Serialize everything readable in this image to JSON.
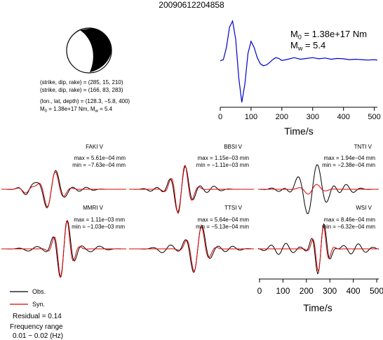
{
  "title": "20090612204858",
  "mechanism": {
    "strike_dip_rake_1": "(strike, dip, rake) = (285, 15, 210)",
    "strike_dip_rake_2": "(strike, dip, rake) = (166, 83, 283)",
    "location": "(lon., lat, depth) = (128.3, −5.8, 400)",
    "moment_line_prefix": "M",
    "moment_line_sub0": "0",
    "moment_line_mid": " = 1.38e+17 Nm, M",
    "moment_line_subw": "w",
    "moment_line_tail": " = 5.4"
  },
  "stf": {
    "m0_prefix": "M",
    "m0_sub": "0",
    "m0_value": " = 1.38e+17 Nm",
    "mw_prefix": "M",
    "mw_sub": "w",
    "mw_value": " = 5.4",
    "xlabel": "Time/s",
    "xticks": [
      "0",
      "100",
      "200",
      "300",
      "400",
      "500"
    ],
    "color": "#0000cc"
  },
  "stations": [
    {
      "name": "FAKI V",
      "max": "max = 5.61e−04 mm",
      "min": "min = −7.63e−04 mm"
    },
    {
      "name": "BBSI V",
      "max": "max = 1.15e−03 mm",
      "min": "min = −1.11e−03 mm"
    },
    {
      "name": "TNTI V",
      "max": "max = 1.94e−04 mm",
      "min": "min = −2.38e−04 mm"
    },
    {
      "name": "MMRI V",
      "max": "max = 1.11e−03 mm",
      "min": "min = −1.03e−03 mm"
    },
    {
      "name": "TTSI V",
      "max": "max = 5.64e−04 mm",
      "min": "min = −5.13e−04 mm"
    },
    {
      "name": "WSI V",
      "max": "max = 8.46e−04 mm",
      "min": "min = −6.32e−04 mm"
    }
  ],
  "waveform_axis": {
    "xlabel": "Time/s",
    "xticks": [
      "0",
      "100",
      "200",
      "300",
      "400",
      "500"
    ]
  },
  "legend": {
    "obs": "Obs.",
    "syn": "Syn.",
    "obs_color": "#000000",
    "syn_color": "#dd0000"
  },
  "residual": "Residual = 0.14",
  "freq_label": "Frequency range",
  "freq_value": "0.01 − 0.02 (Hz)",
  "chart_data": {
    "type": "line",
    "stf": {
      "x_range": [
        0,
        510
      ],
      "x": [
        0,
        10,
        20,
        30,
        40,
        50,
        60,
        70,
        80,
        90,
        100,
        110,
        120,
        130,
        140,
        150,
        160,
        170,
        180,
        190,
        200,
        220,
        240,
        260,
        280,
        300,
        320,
        340,
        360,
        380,
        400,
        420,
        440,
        460,
        480,
        500,
        510
      ],
      "y": [
        0.02,
        0.05,
        0.35,
        0.85,
        1.0,
        0.55,
        -0.4,
        -1.0,
        -0.55,
        0.2,
        0.5,
        0.35,
        0.1,
        -0.05,
        -0.1,
        -0.08,
        -0.02,
        0.05,
        0.1,
        0.08,
        0.03,
        0.06,
        0.1,
        0.06,
        0.08,
        0.1,
        0.07,
        0.09,
        0.06,
        0.08,
        0.07,
        0.05,
        0.06,
        0.05,
        0.04,
        0.05,
        0.04
      ]
    }
  }
}
